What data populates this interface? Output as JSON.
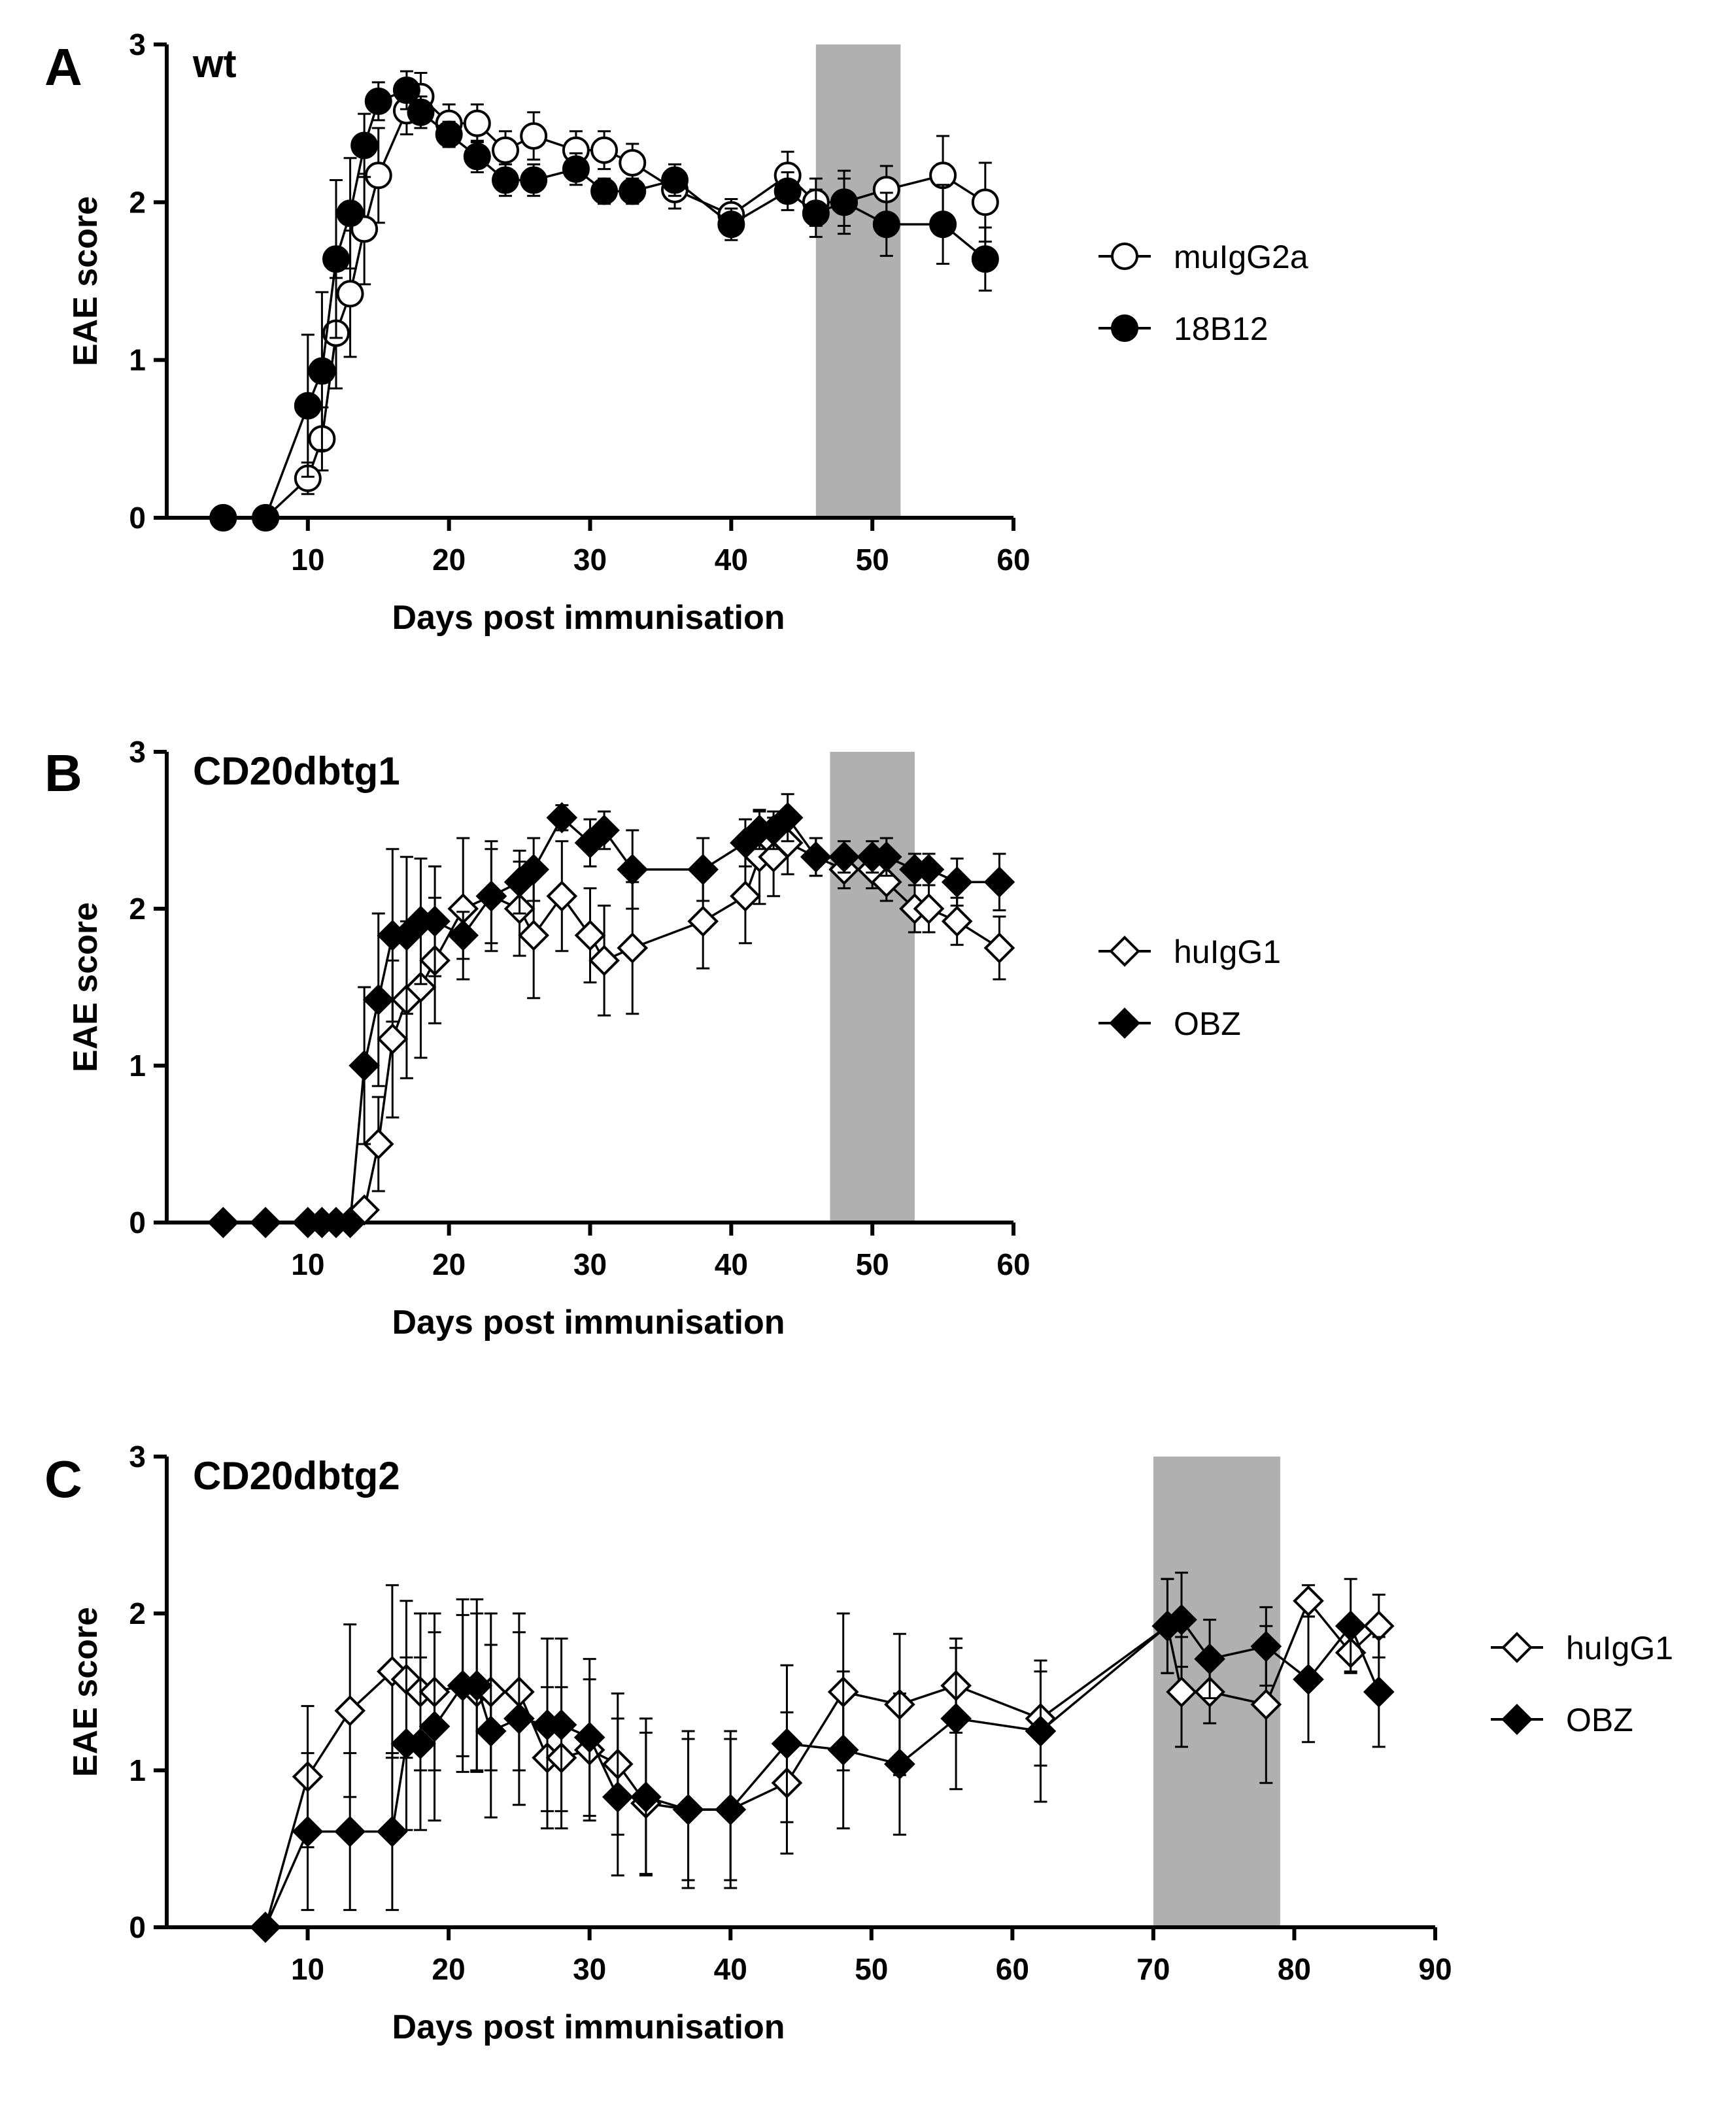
{
  "colors": {
    "ink": "#000000",
    "treatment_band": "#b0b0b0",
    "background": "#ffffff"
  },
  "chart_data": [
    {
      "panel": "A",
      "title": "wt",
      "type": "line",
      "xlabel": "Days post immunisation",
      "ylabel": "EAE score",
      "xlim": [
        0,
        60
      ],
      "ylim": [
        0,
        3
      ],
      "xticks": [
        10,
        20,
        30,
        40,
        50,
        60
      ],
      "yticks": [
        0,
        1,
        2,
        3
      ],
      "shaded_interval": [
        46,
        52
      ],
      "legend_position": "right",
      "series": [
        {
          "name": "muIgG2a",
          "marker": "circle-open",
          "x": [
            4,
            7,
            10,
            11,
            12,
            13,
            14,
            15,
            17,
            18,
            20,
            22,
            24,
            26,
            29,
            31,
            33,
            36,
            40,
            44,
            46,
            48,
            51,
            55,
            58
          ],
          "y": [
            0,
            0,
            0.25,
            0.5,
            1.17,
            1.42,
            1.83,
            2.17,
            2.58,
            2.67,
            2.5,
            2.5,
            2.33,
            2.42,
            2.33,
            2.33,
            2.25,
            2.08,
            1.92,
            2.17,
            2.0,
            2.0,
            2.08,
            2.17,
            2.0
          ],
          "err": [
            0,
            0,
            0.1,
            0.2,
            0.35,
            0.4,
            0.35,
            0.3,
            0.15,
            0.15,
            0.12,
            0.12,
            0.12,
            0.15,
            0.12,
            0.12,
            0.12,
            0.12,
            0.1,
            0.15,
            0.15,
            0.15,
            0.15,
            0.25,
            0.25
          ]
        },
        {
          "name": "18B12",
          "marker": "circle-filled",
          "x": [
            4,
            7,
            10,
            11,
            12,
            13,
            14,
            15,
            17,
            18,
            20,
            22,
            24,
            26,
            29,
            31,
            33,
            36,
            40,
            44,
            46,
            48,
            51,
            55,
            58
          ],
          "y": [
            0,
            0,
            0.71,
            0.93,
            1.64,
            1.93,
            2.36,
            2.64,
            2.71,
            2.57,
            2.43,
            2.29,
            2.14,
            2.14,
            2.21,
            2.07,
            2.07,
            2.14,
            1.86,
            2.07,
            1.93,
            2.0,
            1.86,
            1.86,
            1.64
          ],
          "err": [
            0,
            0,
            0.45,
            0.5,
            0.5,
            0.35,
            0.2,
            0.12,
            0.12,
            0.1,
            0.08,
            0.1,
            0.1,
            0.1,
            0.1,
            0.08,
            0.08,
            0.1,
            0.1,
            0.12,
            0.15,
            0.2,
            0.2,
            0.25,
            0.2
          ]
        }
      ]
    },
    {
      "panel": "B",
      "title": "CD20dbtg1",
      "type": "line",
      "xlabel": "Days post immunisation",
      "ylabel": "EAE score",
      "xlim": [
        0,
        60
      ],
      "ylim": [
        0,
        3
      ],
      "xticks": [
        10,
        20,
        30,
        40,
        50,
        60
      ],
      "yticks": [
        0,
        1,
        2,
        3
      ],
      "shaded_interval": [
        47,
        53
      ],
      "legend_position": "right",
      "series": [
        {
          "name": "huIgG1",
          "marker": "diamond-open",
          "x": [
            4,
            7,
            10,
            11,
            12,
            13,
            14,
            15,
            16,
            17,
            18,
            19,
            21,
            23,
            25,
            26,
            28,
            30,
            31,
            33,
            38,
            41,
            42,
            43,
            44,
            46,
            48,
            50,
            51,
            53,
            54,
            56,
            59
          ],
          "y": [
            0,
            0,
            0,
            0,
            0,
            0,
            0.08,
            0.5,
            1.17,
            1.42,
            1.5,
            1.67,
            2.0,
            2.08,
            2.0,
            1.83,
            2.08,
            1.83,
            1.67,
            1.75,
            1.92,
            2.08,
            2.33,
            2.33,
            2.42,
            2.33,
            2.25,
            2.25,
            2.17,
            2.0,
            2.0,
            1.92,
            1.75
          ],
          "err": [
            0,
            0,
            0,
            0,
            0,
            0,
            0.05,
            0.3,
            0.5,
            0.5,
            0.45,
            0.4,
            0.45,
            0.35,
            0.3,
            0.4,
            0.35,
            0.3,
            0.35,
            0.42,
            0.3,
            0.3,
            0.3,
            0.25,
            0.2,
            0.12,
            0.12,
            0.12,
            0.12,
            0.15,
            0.15,
            0.15,
            0.2
          ]
        },
        {
          "name": "OBZ",
          "marker": "diamond-filled",
          "x": [
            4,
            7,
            10,
            11,
            12,
            13,
            14,
            15,
            16,
            17,
            18,
            19,
            21,
            23,
            25,
            26,
            28,
            30,
            31,
            33,
            38,
            41,
            42,
            43,
            44,
            46,
            48,
            50,
            51,
            53,
            54,
            56,
            59
          ],
          "y": [
            0,
            0,
            0,
            0,
            0,
            0,
            1.0,
            1.42,
            1.83,
            1.83,
            1.92,
            1.92,
            1.83,
            2.08,
            2.17,
            2.25,
            2.58,
            2.42,
            2.5,
            2.25,
            2.25,
            2.42,
            2.5,
            2.5,
            2.58,
            2.33,
            2.33,
            2.33,
            2.33,
            2.25,
            2.25,
            2.17,
            2.17
          ],
          "err": [
            0,
            0,
            0,
            0,
            0,
            0,
            0.5,
            0.55,
            0.55,
            0.5,
            0.4,
            0.35,
            0.15,
            0.3,
            0.2,
            0.2,
            0.08,
            0.15,
            0.12,
            0.25,
            0.2,
            0.15,
            0.12,
            0.12,
            0.15,
            0.12,
            0.1,
            0.1,
            0.12,
            0.1,
            0.1,
            0.15,
            0.18
          ]
        }
      ]
    },
    {
      "panel": "C",
      "title": "CD20dbtg2",
      "type": "line",
      "xlabel": "Days post immunisation",
      "ylabel": "EAE score",
      "xlim": [
        0,
        90
      ],
      "ylim": [
        0,
        3
      ],
      "xticks": [
        10,
        20,
        30,
        40,
        50,
        60,
        70,
        80,
        90
      ],
      "yticks": [
        0,
        1,
        2,
        3
      ],
      "shaded_interval": [
        70,
        79
      ],
      "legend_position": "right",
      "series": [
        {
          "name": "huIgG1",
          "marker": "diamond-open",
          "x": [
            7,
            10,
            13,
            16,
            17,
            18,
            19,
            21,
            22,
            23,
            25,
            27,
            28,
            30,
            32,
            34,
            37,
            40,
            44,
            48,
            52,
            56,
            62,
            71,
            72,
            74,
            78,
            81,
            84,
            86
          ],
          "y": [
            0,
            0.96,
            1.38,
            1.63,
            1.58,
            1.5,
            1.5,
            1.54,
            1.5,
            1.5,
            1.5,
            1.08,
            1.08,
            1.13,
            1.04,
            0.79,
            0.75,
            0.75,
            0.92,
            1.5,
            1.42,
            1.54,
            1.33,
            1.92,
            1.5,
            1.5,
            1.42,
            2.08,
            1.75,
            1.92
          ],
          "err": [
            0,
            0.45,
            0.55,
            0.55,
            0.5,
            0.5,
            0.5,
            0.45,
            0.5,
            0.5,
            0.5,
            0.45,
            0.45,
            0.45,
            0.45,
            0.45,
            0.45,
            0.45,
            0.45,
            0.5,
            0.45,
            0.3,
            0.3,
            0.3,
            0.35,
            0.2,
            0.5,
            0.1,
            0.12,
            0.2
          ]
        },
        {
          "name": "OBZ",
          "marker": "diamond-filled",
          "x": [
            7,
            10,
            13,
            16,
            17,
            18,
            19,
            21,
            22,
            23,
            25,
            27,
            28,
            30,
            32,
            34,
            37,
            40,
            44,
            48,
            52,
            56,
            62,
            71,
            72,
            74,
            78,
            81,
            84,
            86
          ],
          "y": [
            0,
            0.61,
            0.61,
            0.61,
            1.17,
            1.17,
            1.28,
            1.54,
            1.54,
            1.25,
            1.33,
            1.29,
            1.29,
            1.21,
            0.83,
            0.83,
            0.75,
            0.75,
            1.17,
            1.13,
            1.04,
            1.33,
            1.25,
            1.92,
            1.96,
            1.71,
            1.79,
            1.58,
            1.92,
            1.5
          ],
          "err": [
            0,
            0.5,
            0.5,
            0.5,
            0.55,
            0.55,
            0.6,
            0.55,
            0.55,
            0.55,
            0.55,
            0.55,
            0.55,
            0.5,
            0.5,
            0.5,
            0.5,
            0.5,
            0.5,
            0.5,
            0.45,
            0.45,
            0.45,
            0.3,
            0.3,
            0.25,
            0.25,
            0.4,
            0.3,
            0.35
          ]
        }
      ]
    }
  ]
}
